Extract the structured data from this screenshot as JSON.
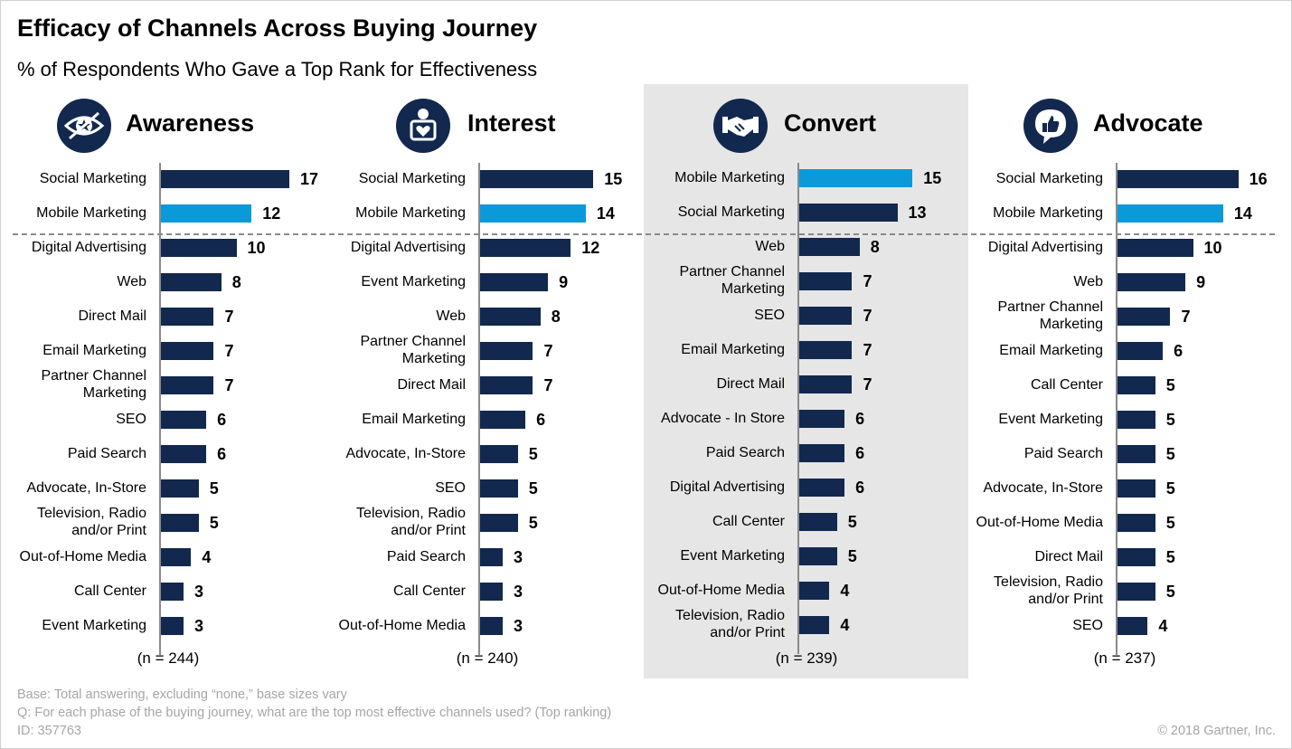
{
  "title": "Efficacy of Channels Across Buying Journey",
  "subtitle": "% of Respondents Who Gave a Top Rank for Effectiveness",
  "colors": {
    "dark_bar": "#12284f",
    "highlight_bar": "#0a9ad9",
    "icon_bg": "#12284f",
    "convert_bg": "#e6e6e6"
  },
  "footnotes": {
    "base": "Base: Total answering, excluding “none,” base sizes vary",
    "question": "Q: For each phase of the buying journey, what are the top most effective channels used? (Top ranking)",
    "id": "ID: 357763",
    "copyright": "© 2018 Gartner, Inc."
  },
  "chart_data": [
    {
      "type": "bar",
      "orientation": "horizontal",
      "title": "Awareness",
      "icon": "eye-star-icon",
      "n_label": "(n = 244)",
      "categories": [
        "Social Marketing",
        "Mobile Marketing",
        "Digital Advertising",
        "Web",
        "Direct Mail",
        "Email Marketing",
        "Partner Channel Marketing",
        "SEO",
        "Paid Search",
        "Advocate, In-Store",
        "Television, Radio and/or Print",
        "Out-of-Home Media",
        "Call Center",
        "Event Marketing"
      ],
      "values": [
        17,
        12,
        10,
        8,
        7,
        7,
        7,
        6,
        6,
        5,
        5,
        4,
        3,
        3
      ],
      "highlight": [
        1
      ]
    },
    {
      "type": "bar",
      "orientation": "horizontal",
      "title": "Interest",
      "icon": "person-heart-icon",
      "n_label": "(n = 240)",
      "categories": [
        "Social Marketing",
        "Mobile Marketing",
        "Digital Advertising",
        "Event Marketing",
        "Web",
        "Partner Channel Marketing",
        "Direct Mail",
        "Email Marketing",
        "Advocate, In-Store",
        "SEO",
        "Television, Radio and/or Print",
        "Paid Search",
        "Call Center",
        "Out-of-Home Media"
      ],
      "values": [
        15,
        14,
        12,
        9,
        8,
        7,
        7,
        6,
        5,
        5,
        5,
        3,
        3,
        3
      ],
      "highlight": [
        1
      ]
    },
    {
      "type": "bar",
      "orientation": "horizontal",
      "title": "Convert",
      "icon": "handshake-icon",
      "n_label": "(n = 239)",
      "categories": [
        "Mobile Marketing",
        "Social Marketing",
        "Web",
        "Partner Channel Marketing",
        "SEO",
        "Email Marketing",
        "Direct Mail",
        "Advocate - In Store",
        "Paid Search",
        "Digital Advertising",
        "Call Center",
        "Event Marketing",
        "Out-of-Home Media",
        "Television, Radio and/or Print"
      ],
      "values": [
        15,
        13,
        8,
        7,
        7,
        7,
        7,
        6,
        6,
        6,
        5,
        5,
        4,
        4
      ],
      "highlight": [
        0
      ]
    },
    {
      "type": "bar",
      "orientation": "horizontal",
      "title": "Advocate",
      "icon": "thumbs-up-bubble-icon",
      "n_label": "(n = 237)",
      "categories": [
        "Social Marketing",
        "Mobile Marketing",
        "Digital Advertising",
        "Web",
        "Partner Channel Marketing",
        "Email Marketing",
        "Call Center",
        "Event Marketing",
        "Paid Search",
        "Advocate, In-Store",
        "Out-of-Home Media",
        "Direct Mail",
        "Television, Radio and/or Print",
        "SEO"
      ],
      "values": [
        16,
        14,
        10,
        9,
        7,
        6,
        5,
        5,
        5,
        5,
        5,
        5,
        5,
        4
      ],
      "highlight": [
        1
      ]
    }
  ]
}
